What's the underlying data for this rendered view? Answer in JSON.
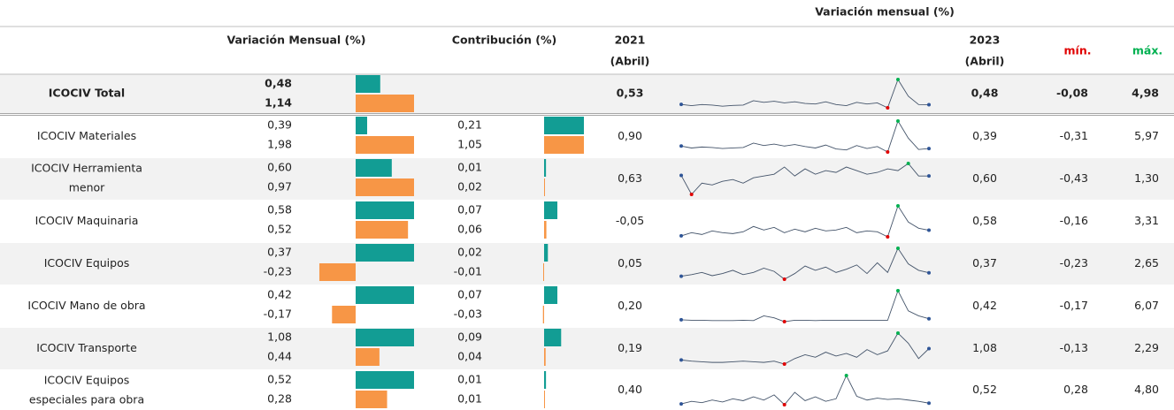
{
  "header": {
    "group_title": "Variación mensual (%)",
    "variacion": "Variación Mensual (%)",
    "contribucion": "Contribución (%)",
    "first": [
      "2021",
      "(Abril)"
    ],
    "last": [
      "2023",
      "(Abril)"
    ],
    "min": "mín.",
    "max": "máx."
  },
  "rows": [
    {
      "name": [
        "ICOCIV Total"
      ],
      "variacion": [
        {
          "value": 0.48,
          "label": "0,48"
        },
        {
          "value": 1.14,
          "label": "1,14"
        }
      ],
      "v2021": {
        "value": 0.53,
        "label": "0,53"
      },
      "spark": [
        0.53,
        0.3,
        0.5,
        0.4,
        0.2,
        0.35,
        0.4,
        1.2,
        0.9,
        1.1,
        0.8,
        1.0,
        0.7,
        0.6,
        1.0,
        0.5,
        0.3,
        0.9,
        0.6,
        0.8,
        -0.08,
        4.98,
        2.0,
        0.5,
        0.48
      ],
      "v2023": {
        "value": 0.48,
        "label": "0,48"
      },
      "min": {
        "value": -0.08,
        "label": "-0,08"
      },
      "max": {
        "value": 4.98,
        "label": "4,98"
      }
    },
    {
      "name": [
        "ICOCIV Materiales"
      ],
      "variacion": [
        {
          "value": 0.39,
          "label": "0,39"
        },
        {
          "value": 1.98,
          "label": "1,98"
        }
      ],
      "contribucion": [
        {
          "value": 0.21,
          "label": "0,21"
        },
        {
          "value": 1.05,
          "label": "1,05"
        }
      ],
      "v2021": {
        "value": 0.9,
        "label": "0,90"
      },
      "spark": [
        0.9,
        0.5,
        0.7,
        0.6,
        0.4,
        0.5,
        0.6,
        1.5,
        1.0,
        1.3,
        0.9,
        1.2,
        0.8,
        0.5,
        1.1,
        0.3,
        0.1,
        1.0,
        0.4,
        0.8,
        -0.31,
        5.97,
        2.5,
        0.2,
        0.39
      ],
      "v2023": {
        "value": 0.39,
        "label": "0,39"
      },
      "min": {
        "value": -0.31,
        "label": "-0,31"
      },
      "max": {
        "value": 5.97,
        "label": "5,97"
      }
    },
    {
      "name": [
        "ICOCIV Herramienta",
        "menor"
      ],
      "variacion": [
        {
          "value": 0.6,
          "label": "0,60"
        },
        {
          "value": 0.97,
          "label": "0,97"
        }
      ],
      "contribucion": [
        {
          "value": 0.01,
          "label": "0,01"
        },
        {
          "value": 0.02,
          "label": "0,02"
        }
      ],
      "v2021": {
        "value": 0.63,
        "label": "0,63"
      },
      "spark": [
        0.63,
        -0.43,
        0.2,
        0.1,
        0.3,
        0.4,
        0.2,
        0.5,
        0.6,
        0.7,
        1.1,
        0.6,
        1.0,
        0.7,
        0.9,
        0.8,
        1.1,
        0.9,
        0.7,
        0.8,
        1.0,
        0.9,
        1.3,
        0.6,
        0.6
      ],
      "v2023": {
        "value": 0.6,
        "label": "0,60"
      },
      "min": {
        "value": -0.43,
        "label": "-0,43"
      },
      "max": {
        "value": 1.3,
        "label": "1,30"
      }
    },
    {
      "name": [
        "ICOCIV Maquinaria"
      ],
      "variacion": [
        {
          "value": 0.58,
          "label": "0,58"
        },
        {
          "value": 0.52,
          "label": "0,52"
        }
      ],
      "contribucion": [
        {
          "value": 0.07,
          "label": "0,07"
        },
        {
          "value": 0.06,
          "label": "0,06"
        }
      ],
      "v2021": {
        "value": -0.05,
        "label": "-0,05"
      },
      "spark": [
        -0.05,
        0.3,
        0.1,
        0.5,
        0.3,
        0.2,
        0.4,
        1.0,
        0.6,
        0.9,
        0.3,
        0.7,
        0.4,
        0.8,
        0.5,
        0.6,
        0.9,
        0.3,
        0.5,
        0.4,
        -0.16,
        3.31,
        1.5,
        0.8,
        0.58
      ],
      "v2023": {
        "value": 0.58,
        "label": "0,58"
      },
      "min": {
        "value": -0.16,
        "label": "-0,16"
      },
      "max": {
        "value": 3.31,
        "label": "3,31"
      }
    },
    {
      "name": [
        "ICOCIV Equipos"
      ],
      "variacion": [
        {
          "value": 0.37,
          "label": "0,37"
        },
        {
          "value": -0.23,
          "label": "-0,23"
        }
      ],
      "contribucion": [
        {
          "value": 0.02,
          "label": "0,02"
        },
        {
          "value": -0.01,
          "label": "-0,01"
        }
      ],
      "v2021": {
        "value": 0.05,
        "label": "0,05"
      },
      "spark": [
        0.05,
        0.2,
        0.4,
        0.1,
        0.3,
        0.6,
        0.2,
        0.4,
        0.8,
        0.5,
        -0.23,
        0.3,
        1.0,
        0.6,
        0.9,
        0.4,
        0.7,
        1.1,
        0.3,
        1.3,
        0.4,
        2.65,
        1.2,
        0.6,
        0.37
      ],
      "v2023": {
        "value": 0.37,
        "label": "0,37"
      },
      "min": {
        "value": -0.23,
        "label": "-0,23"
      },
      "max": {
        "value": 2.65,
        "label": "2,65"
      }
    },
    {
      "name": [
        "ICOCIV Mano de obra"
      ],
      "variacion": [
        {
          "value": 0.42,
          "label": "0,42"
        },
        {
          "value": -0.17,
          "label": "-0,17"
        }
      ],
      "contribucion": [
        {
          "value": 0.07,
          "label": "0,07"
        },
        {
          "value": -0.03,
          "label": "-0,03"
        }
      ],
      "v2021": {
        "value": 0.2,
        "label": "0,20"
      },
      "spark": [
        0.2,
        0.1,
        0.1,
        0.05,
        0.05,
        0.05,
        0.1,
        0.05,
        1.0,
        0.6,
        -0.17,
        0.1,
        0.1,
        0.05,
        0.1,
        0.1,
        0.1,
        0.1,
        0.1,
        0.1,
        0.1,
        6.07,
        2.0,
        1.0,
        0.42
      ],
      "v2023": {
        "value": 0.42,
        "label": "0,42"
      },
      "min": {
        "value": -0.17,
        "label": "-0,17"
      },
      "max": {
        "value": 6.07,
        "label": "6,07"
      }
    },
    {
      "name": [
        "ICOCIV Transporte"
      ],
      "variacion": [
        {
          "value": 1.08,
          "label": "1,08"
        },
        {
          "value": 0.44,
          "label": "0,44"
        }
      ],
      "contribucion": [
        {
          "value": 0.09,
          "label": "0,09"
        },
        {
          "value": 0.04,
          "label": "0,04"
        }
      ],
      "v2021": {
        "value": 0.19,
        "label": "0,19"
      },
      "spark": [
        0.19,
        0.1,
        0.05,
        0.0,
        0.0,
        0.05,
        0.1,
        0.05,
        0.0,
        0.1,
        -0.13,
        0.3,
        0.6,
        0.4,
        0.8,
        0.5,
        0.7,
        0.4,
        1.0,
        0.6,
        0.9,
        2.29,
        1.5,
        0.3,
        1.08
      ],
      "v2023": {
        "value": 1.08,
        "label": "1,08"
      },
      "min": {
        "value": -0.13,
        "label": "-0,13"
      },
      "max": {
        "value": 2.29,
        "label": "2,29"
      }
    },
    {
      "name": [
        "ICOCIV Equipos",
        "especiales para obra"
      ],
      "variacion": [
        {
          "value": 0.52,
          "label": "0,52"
        },
        {
          "value": 0.28,
          "label": "0,28"
        }
      ],
      "contribucion": [
        {
          "value": 0.01,
          "label": "0,01"
        },
        {
          "value": 0.01,
          "label": "0,01"
        }
      ],
      "v2021": {
        "value": 0.4,
        "label": "0,40"
      },
      "spark": [
        0.4,
        0.8,
        0.6,
        1.0,
        0.7,
        1.2,
        0.9,
        1.5,
        1.0,
        1.8,
        0.28,
        2.2,
        0.9,
        1.5,
        0.8,
        1.2,
        4.8,
        1.6,
        1.0,
        1.3,
        1.1,
        1.2,
        1.0,
        0.8,
        0.52
      ],
      "v2023": {
        "value": 0.52,
        "label": "0,52"
      },
      "min": {
        "value": 0.28,
        "label": "0,28"
      },
      "max": {
        "value": 4.8,
        "label": "4,80"
      }
    }
  ]
}
